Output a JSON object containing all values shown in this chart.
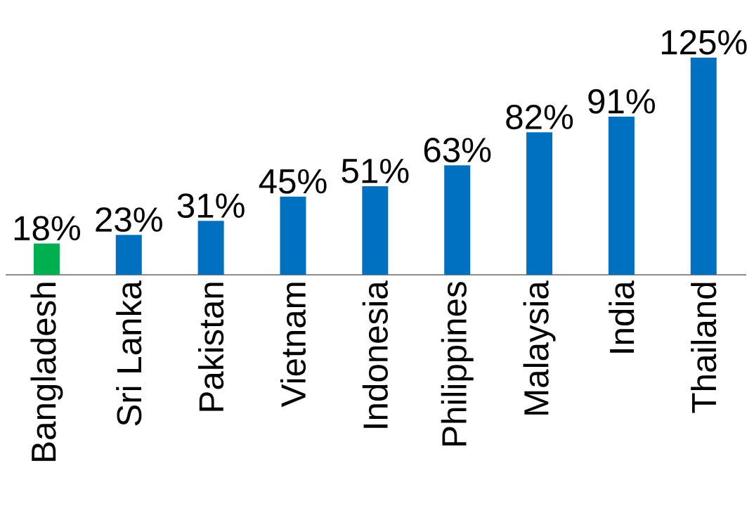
{
  "chart_data": {
    "type": "bar",
    "categories": [
      "Bangladesh",
      "Sri Lanka",
      "Pakistan",
      "Vietnam",
      "Indonesia",
      "Philippines",
      "Malaysia",
      "India",
      "Thailand"
    ],
    "values": [
      18,
      23,
      31,
      45,
      51,
      63,
      82,
      91,
      125
    ],
    "value_labels": [
      "18%",
      "23%",
      "31%",
      "45%",
      "51%",
      "63%",
      "82%",
      "91%",
      "125%"
    ],
    "colors": [
      "#00b050",
      "#0070c0",
      "#0070c0",
      "#0070c0",
      "#0070c0",
      "#0070c0",
      "#0070c0",
      "#0070c0",
      "#0070c0"
    ]
  }
}
